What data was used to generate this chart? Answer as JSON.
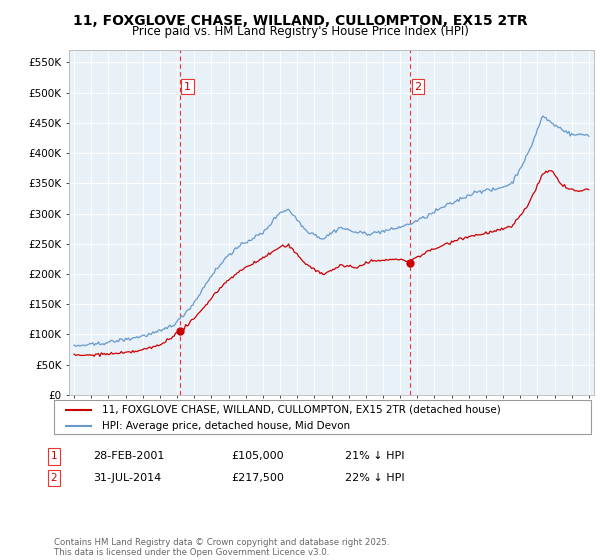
{
  "title": "11, FOXGLOVE CHASE, WILLAND, CULLOMPTON, EX15 2TR",
  "subtitle": "Price paid vs. HM Land Registry's House Price Index (HPI)",
  "ylabel_ticks": [
    "£0",
    "£50K",
    "£100K",
    "£150K",
    "£200K",
    "£250K",
    "£300K",
    "£350K",
    "£400K",
    "£450K",
    "£500K",
    "£550K"
  ],
  "ytick_values": [
    0,
    50000,
    100000,
    150000,
    200000,
    250000,
    300000,
    350000,
    400000,
    450000,
    500000,
    550000
  ],
  "ylim": [
    0,
    570000
  ],
  "xlim_start": 1994.7,
  "xlim_end": 2025.3,
  "sale1_x": 2001.167,
  "sale1_y": 105000,
  "sale2_x": 2014.583,
  "sale2_y": 217500,
  "vline1_x": 2001.167,
  "vline2_x": 2014.583,
  "legend_line1": "11, FOXGLOVE CHASE, WILLAND, CULLOMPTON, EX15 2TR (detached house)",
  "legend_line2": "HPI: Average price, detached house, Mid Devon",
  "note1_label": "1",
  "note1_date": "28-FEB-2001",
  "note1_price": "£105,000",
  "note1_hpi": "21% ↓ HPI",
  "note2_label": "2",
  "note2_date": "31-JUL-2014",
  "note2_price": "£217,500",
  "note2_hpi": "22% ↓ HPI",
  "footer": "Contains HM Land Registry data © Crown copyright and database right 2025.\nThis data is licensed under the Open Government Licence v3.0.",
  "red_color": "#cc0000",
  "blue_color": "#6699cc",
  "vline_color": "#ee3333",
  "plot_bg_color": "#e8f0f8",
  "background_color": "#ffffff",
  "grid_color": "#ffffff"
}
